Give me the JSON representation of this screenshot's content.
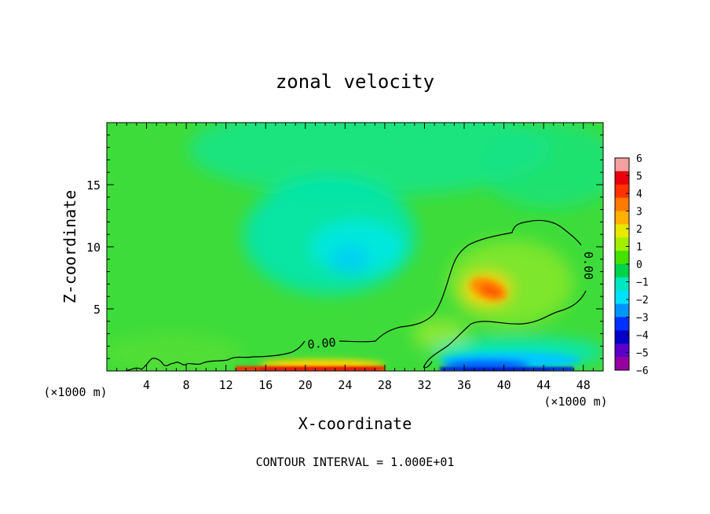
{
  "chart_data": {
    "type": "heatmap",
    "title": "zonal velocity",
    "xlabel": "X-coordinate",
    "ylabel": "Z-coordinate",
    "x_unit": "(×1000 m)",
    "x_unit_right": "(×1000 m)",
    "footer": "CONTOUR INTERVAL = 1.000E+01",
    "xlim": [
      0,
      50
    ],
    "ylim": [
      0,
      20
    ],
    "xticks": [
      4,
      8,
      12,
      16,
      20,
      24,
      28,
      32,
      36,
      40,
      44,
      48
    ],
    "yticks": [
      5,
      10,
      15
    ],
    "colorbar": {
      "min": -6,
      "max": 6,
      "ticks": [
        6,
        5,
        4,
        3,
        2,
        1,
        0,
        -1,
        -2,
        -3,
        -4,
        -5,
        -6
      ],
      "tick_labels": [
        "6",
        "5",
        "4",
        "3",
        "2",
        "1",
        "0",
        "−1",
        "−2",
        "−3",
        "−4",
        "−5",
        "−6"
      ],
      "colors": [
        "#f4a0a0",
        "#e8000a",
        "#ff3300",
        "#ff7a00",
        "#ffb000",
        "#e8e800",
        "#a0f000",
        "#44e000",
        "#00d24a",
        "#00e6c0",
        "#00e0ff",
        "#0096ff",
        "#0030ff",
        "#0000c8",
        "#5a00c8",
        "#9600a0"
      ]
    },
    "features": [
      {
        "kind": "background",
        "x_range": [
          0,
          50
        ],
        "z_range": [
          0,
          20
        ],
        "value_range": [
          -0.5,
          0.5
        ]
      },
      {
        "kind": "minimum",
        "x": 24,
        "z": 9.5,
        "value": -2
      },
      {
        "kind": "maximum",
        "x": 38.5,
        "z": 6.5,
        "value": 4
      },
      {
        "kind": "surface_maximum",
        "x_range": [
          16,
          28
        ],
        "z_range": [
          0,
          0.5
        ],
        "value": 6
      },
      {
        "kind": "surface_minimum",
        "x_range": [
          33,
          48
        ],
        "z_range": [
          0,
          0.5
        ],
        "value": -6
      }
    ],
    "contours": [
      {
        "level": 0.0,
        "label": "0.00",
        "label_positions": [
          [
            21,
            2.3
          ],
          [
            48,
            8.8
          ]
        ]
      }
    ]
  }
}
